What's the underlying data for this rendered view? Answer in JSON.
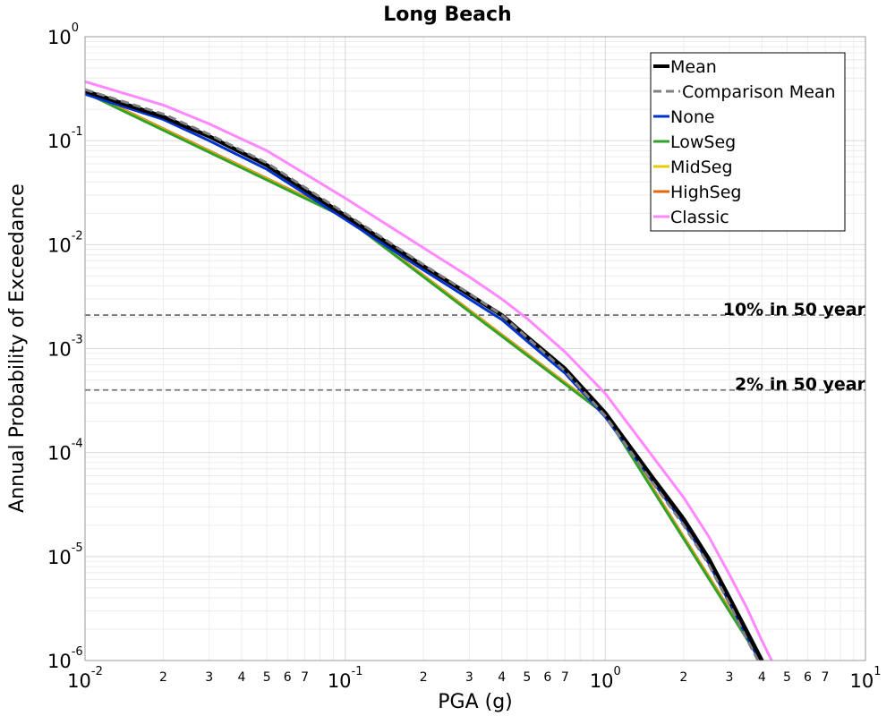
{
  "chart_data": {
    "type": "line",
    "title": "Long Beach",
    "xlabel": "PGA (g)",
    "ylabel": "Annual Probability of Exceedance",
    "x_scale": "log",
    "y_scale": "log",
    "xlim": [
      0.01,
      10
    ],
    "ylim": [
      1e-06,
      1
    ],
    "x_major_ticks": [
      {
        "base": "10",
        "exp": "-2"
      },
      {
        "base": "10",
        "exp": "-1"
      },
      {
        "base": "10",
        "exp": "0"
      },
      {
        "base": "10",
        "exp": "1"
      }
    ],
    "y_major_ticks": [
      {
        "base": "10",
        "exp": "0"
      },
      {
        "base": "10",
        "exp": "-1"
      },
      {
        "base": "10",
        "exp": "-2"
      },
      {
        "base": "10",
        "exp": "-3"
      },
      {
        "base": "10",
        "exp": "-4"
      },
      {
        "base": "10",
        "exp": "-5"
      },
      {
        "base": "10",
        "exp": "-6"
      }
    ],
    "x_minor_tick_labels": [
      "2",
      "3",
      "4",
      "5",
      "6",
      "7"
    ],
    "grid": true,
    "legend_position": "top-right",
    "reference_lines": [
      {
        "label": "10% in 50 year",
        "y": 0.0021
      },
      {
        "label": "2% in 50 year",
        "y": 0.0004
      }
    ],
    "series": [
      {
        "name": "Mean",
        "color": "#000000",
        "style": "solid",
        "x": [
          0.01,
          0.02,
          0.03,
          0.05,
          0.1,
          0.2,
          0.3,
          0.4,
          0.5,
          0.7,
          1.0,
          1.5,
          2.0,
          2.5,
          3.0,
          3.5,
          4.0,
          4.1
        ],
        "y": [
          0.3,
          0.17,
          0.11,
          0.058,
          0.019,
          0.0062,
          0.0033,
          0.0021,
          0.0013,
          0.00064,
          0.00024,
          6e-05,
          2.3e-05,
          9.5e-06,
          4e-06,
          1.9e-06,
          1e-06,
          8.5e-07
        ]
      },
      {
        "name": "Comparison Mean",
        "color": "#808080",
        "style": "dashed",
        "x": [
          0.01,
          0.02,
          0.03,
          0.05,
          0.1,
          0.2,
          0.3,
          0.4,
          0.5,
          0.7,
          1.0,
          1.5,
          2.0,
          2.5,
          3.0,
          3.5,
          4.0,
          4.1
        ],
        "y": [
          0.31,
          0.18,
          0.115,
          0.061,
          0.02,
          0.0064,
          0.0034,
          0.0021,
          0.00128,
          0.00061,
          0.000225,
          5.4e-05,
          2e-05,
          8.3e-06,
          3.5e-06,
          1.6e-06,
          8.5e-07,
          7.5e-07
        ]
      },
      {
        "name": "None",
        "color": "#0033cc",
        "style": "solid",
        "x": [
          0.01,
          0.02,
          0.03,
          0.05,
          0.1,
          0.2,
          0.3,
          0.4,
          0.5,
          0.7,
          1.0,
          1.5,
          2.0,
          2.5,
          3.0,
          3.5,
          4.0,
          4.1
        ],
        "y": [
          0.28,
          0.16,
          0.1,
          0.053,
          0.0175,
          0.0057,
          0.003,
          0.0019,
          0.00118,
          0.00058,
          0.00022,
          5.5e-05,
          2.1e-05,
          8.6e-06,
          3.6e-06,
          1.7e-06,
          9e-07,
          7.8e-07
        ]
      },
      {
        "name": "LowSeg",
        "color": "#33a02c",
        "style": "solid",
        "x": [
          0.01,
          0.1,
          1.0,
          4.0
        ],
        "y": [
          0.29,
          0.0182,
          0.000232,
          9.5e-07
        ]
      },
      {
        "name": "MidSeg",
        "color": "#e6cc00",
        "style": "solid",
        "x": [
          0.01,
          0.1,
          1.0,
          4.0
        ],
        "y": [
          0.295,
          0.0185,
          0.000236,
          9.7e-07
        ]
      },
      {
        "name": "HighSeg",
        "color": "#e8650f",
        "style": "solid",
        "x": [
          0.01,
          0.1,
          1.0,
          4.0
        ],
        "y": [
          0.3,
          0.0188,
          0.00024,
          1e-06
        ]
      },
      {
        "name": "Classic",
        "color": "#ff88ff",
        "style": "solid",
        "x": [
          0.01,
          0.02,
          0.03,
          0.05,
          0.1,
          0.2,
          0.3,
          0.4,
          0.5,
          0.7,
          1.0,
          1.5,
          2.0,
          2.5,
          3.0,
          3.5,
          4.0,
          4.5
        ],
        "y": [
          0.37,
          0.22,
          0.145,
          0.08,
          0.028,
          0.0093,
          0.0049,
          0.003,
          0.00195,
          0.00093,
          0.00037,
          9.6e-05,
          3.7e-05,
          1.55e-05,
          6.7e-06,
          3.2e-06,
          1.55e-06,
          8.5e-07
        ]
      }
    ]
  }
}
